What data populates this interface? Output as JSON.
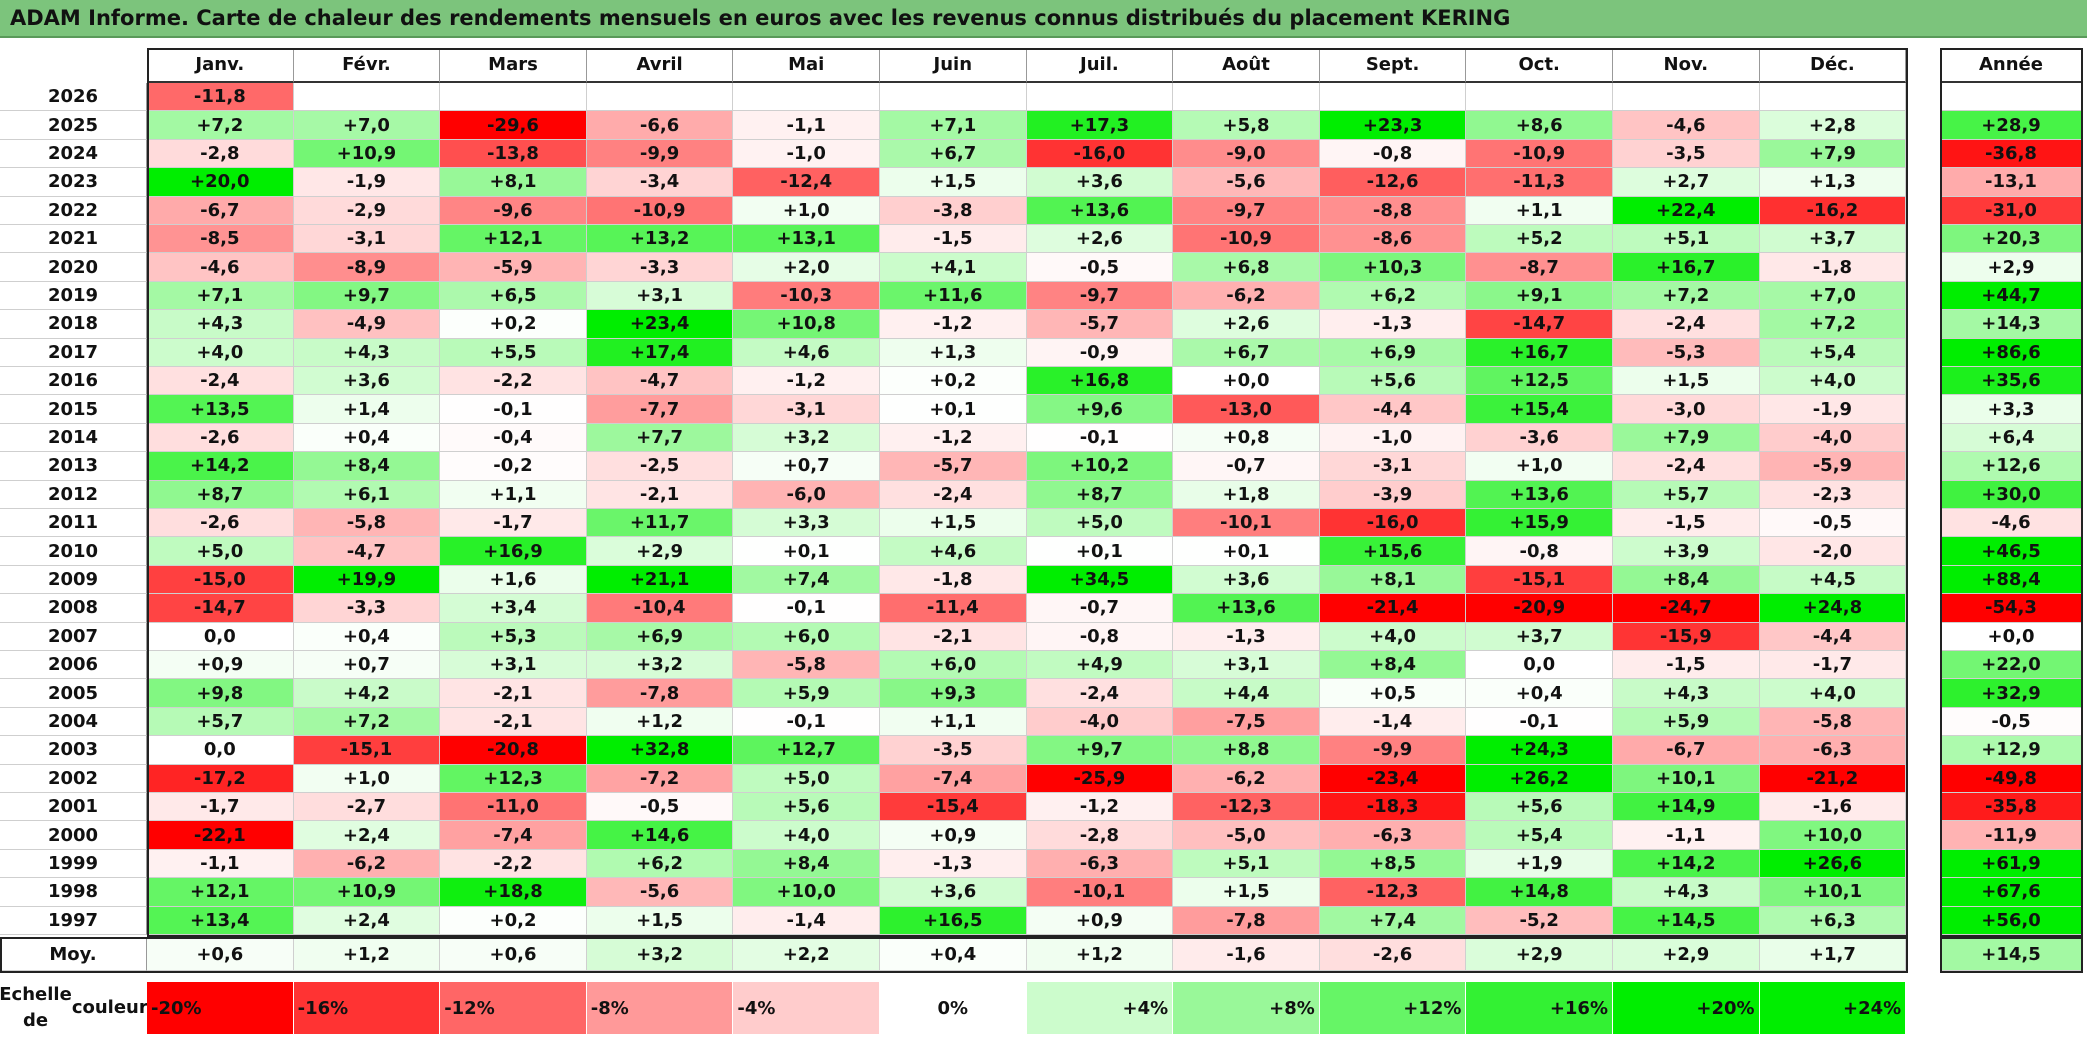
{
  "title": "ADAM Informe. Carte de chaleur des rendements mensuels en euros avec les revenus connus distribués du placement KERING",
  "chart_data": {
    "type": "heatmap",
    "columns": [
      "Janv.",
      "Févr.",
      "Mars",
      "Avril",
      "Mai",
      "Juin",
      "Juil.",
      "Août",
      "Sept.",
      "Oct.",
      "Nov.",
      "Déc."
    ],
    "year_column_label": "Année",
    "rows": [
      {
        "year": "2026",
        "values": [
          "-11,8",
          "",
          "",
          "",
          "",
          "",
          "",
          "",
          "",
          "",
          "",
          ""
        ],
        "annual": ""
      },
      {
        "year": "2025",
        "values": [
          "+7,2",
          "+7,0",
          "-29,6",
          "-6,6",
          "-1,1",
          "+7,1",
          "+17,3",
          "+5,8",
          "+23,3",
          "+8,6",
          "-4,6",
          "+2,8"
        ],
        "annual": "+28,9"
      },
      {
        "year": "2024",
        "values": [
          "-2,8",
          "+10,9",
          "-13,8",
          "-9,9",
          "-1,0",
          "+6,7",
          "-16,0",
          "-9,0",
          "-0,8",
          "-10,9",
          "-3,5",
          "+7,9"
        ],
        "annual": "-36,8"
      },
      {
        "year": "2023",
        "values": [
          "+20,0",
          "-1,9",
          "+8,1",
          "-3,4",
          "-12,4",
          "+1,5",
          "+3,6",
          "-5,6",
          "-12,6",
          "-11,3",
          "+2,7",
          "+1,3"
        ],
        "annual": "-13,1"
      },
      {
        "year": "2022",
        "values": [
          "-6,7",
          "-2,9",
          "-9,6",
          "-10,9",
          "+1,0",
          "-3,8",
          "+13,6",
          "-9,7",
          "-8,8",
          "+1,1",
          "+22,4",
          "-16,2"
        ],
        "annual": "-31,0"
      },
      {
        "year": "2021",
        "values": [
          "-8,5",
          "-3,1",
          "+12,1",
          "+13,2",
          "+13,1",
          "-1,5",
          "+2,6",
          "-10,9",
          "-8,6",
          "+5,2",
          "+5,1",
          "+3,7"
        ],
        "annual": "+20,3"
      },
      {
        "year": "2020",
        "values": [
          "-4,6",
          "-8,9",
          "-5,9",
          "-3,3",
          "+2,0",
          "+4,1",
          "-0,5",
          "+6,8",
          "+10,3",
          "-8,7",
          "+16,7",
          "-1,8"
        ],
        "annual": "+2,9"
      },
      {
        "year": "2019",
        "values": [
          "+7,1",
          "+9,7",
          "+6,5",
          "+3,1",
          "-10,3",
          "+11,6",
          "-9,7",
          "-6,2",
          "+6,2",
          "+9,1",
          "+7,2",
          "+7,0"
        ],
        "annual": "+44,7"
      },
      {
        "year": "2018",
        "values": [
          "+4,3",
          "-4,9",
          "+0,2",
          "+23,4",
          "+10,8",
          "-1,2",
          "-5,7",
          "+2,6",
          "-1,3",
          "-14,7",
          "-2,4",
          "+7,2"
        ],
        "annual": "+14,3"
      },
      {
        "year": "2017",
        "values": [
          "+4,0",
          "+4,3",
          "+5,5",
          "+17,4",
          "+4,6",
          "+1,3",
          "-0,9",
          "+6,7",
          "+6,9",
          "+16,7",
          "-5,3",
          "+5,4"
        ],
        "annual": "+86,6"
      },
      {
        "year": "2016",
        "values": [
          "-2,4",
          "+3,6",
          "-2,2",
          "-4,7",
          "-1,2",
          "+0,2",
          "+16,8",
          "+0,0",
          "+5,6",
          "+12,5",
          "+1,5",
          "+4,0"
        ],
        "annual": "+35,6"
      },
      {
        "year": "2015",
        "values": [
          "+13,5",
          "+1,4",
          "-0,1",
          "-7,7",
          "-3,1",
          "+0,1",
          "+9,6",
          "-13,0",
          "-4,4",
          "+15,4",
          "-3,0",
          "-1,9"
        ],
        "annual": "+3,3"
      },
      {
        "year": "2014",
        "values": [
          "-2,6",
          "+0,4",
          "-0,4",
          "+7,7",
          "+3,2",
          "-1,2",
          "-0,1",
          "+0,8",
          "-1,0",
          "-3,6",
          "+7,9",
          "-4,0"
        ],
        "annual": "+6,4"
      },
      {
        "year": "2013",
        "values": [
          "+14,2",
          "+8,4",
          "-0,2",
          "-2,5",
          "+0,7",
          "-5,7",
          "+10,2",
          "-0,7",
          "-3,1",
          "+1,0",
          "-2,4",
          "-5,9"
        ],
        "annual": "+12,6"
      },
      {
        "year": "2012",
        "values": [
          "+8,7",
          "+6,1",
          "+1,1",
          "-2,1",
          "-6,0",
          "-2,4",
          "+8,7",
          "+1,8",
          "-3,9",
          "+13,6",
          "+5,7",
          "-2,3"
        ],
        "annual": "+30,0"
      },
      {
        "year": "2011",
        "values": [
          "-2,6",
          "-5,8",
          "-1,7",
          "+11,7",
          "+3,3",
          "+1,5",
          "+5,0",
          "-10,1",
          "-16,0",
          "+15,9",
          "-1,5",
          "-0,5"
        ],
        "annual": "-4,6"
      },
      {
        "year": "2010",
        "values": [
          "+5,0",
          "-4,7",
          "+16,9",
          "+2,9",
          "+0,1",
          "+4,6",
          "+0,1",
          "+0,1",
          "+15,6",
          "-0,8",
          "+3,9",
          "-2,0"
        ],
        "annual": "+46,5"
      },
      {
        "year": "2009",
        "values": [
          "-15,0",
          "+19,9",
          "+1,6",
          "+21,1",
          "+7,4",
          "-1,8",
          "+34,5",
          "+3,6",
          "+8,1",
          "-15,1",
          "+8,4",
          "+4,5"
        ],
        "annual": "+88,4"
      },
      {
        "year": "2008",
        "values": [
          "-14,7",
          "-3,3",
          "+3,4",
          "-10,4",
          "-0,1",
          "-11,4",
          "-0,7",
          "+13,6",
          "-21,4",
          "-20,9",
          "-24,7",
          "+24,8"
        ],
        "annual": "-54,3"
      },
      {
        "year": "2007",
        "values": [
          "0,0",
          "+0,4",
          "+5,3",
          "+6,9",
          "+6,0",
          "-2,1",
          "-0,8",
          "-1,3",
          "+4,0",
          "+3,7",
          "-15,9",
          "-4,4"
        ],
        "annual": "+0,0"
      },
      {
        "year": "2006",
        "values": [
          "+0,9",
          "+0,7",
          "+3,1",
          "+3,2",
          "-5,8",
          "+6,0",
          "+4,9",
          "+3,1",
          "+8,4",
          "0,0",
          "-1,5",
          "-1,7"
        ],
        "annual": "+22,0"
      },
      {
        "year": "2005",
        "values": [
          "+9,8",
          "+4,2",
          "-2,1",
          "-7,8",
          "+5,9",
          "+9,3",
          "-2,4",
          "+4,4",
          "+0,5",
          "+0,4",
          "+4,3",
          "+4,0"
        ],
        "annual": "+32,9"
      },
      {
        "year": "2004",
        "values": [
          "+5,7",
          "+7,2",
          "-2,1",
          "+1,2",
          "-0,1",
          "+1,1",
          "-4,0",
          "-7,5",
          "-1,4",
          "-0,1",
          "+5,9",
          "-5,8"
        ],
        "annual": "-0,5"
      },
      {
        "year": "2003",
        "values": [
          "0,0",
          "-15,1",
          "-20,8",
          "+32,8",
          "+12,7",
          "-3,5",
          "+9,7",
          "+8,8",
          "-9,9",
          "+24,3",
          "-6,7",
          "-6,3"
        ],
        "annual": "+12,9"
      },
      {
        "year": "2002",
        "values": [
          "-17,2",
          "+1,0",
          "+12,3",
          "-7,2",
          "+5,0",
          "-7,4",
          "-25,9",
          "-6,2",
          "-23,4",
          "+26,2",
          "+10,1",
          "-21,2"
        ],
        "annual": "-49,8"
      },
      {
        "year": "2001",
        "values": [
          "-1,7",
          "-2,7",
          "-11,0",
          "-0,5",
          "+5,6",
          "-15,4",
          "-1,2",
          "-12,3",
          "-18,3",
          "+5,6",
          "+14,9",
          "-1,6"
        ],
        "annual": "-35,8"
      },
      {
        "year": "2000",
        "values": [
          "-22,1",
          "+2,4",
          "-7,4",
          "+14,6",
          "+4,0",
          "+0,9",
          "-2,8",
          "-5,0",
          "-6,3",
          "+5,4",
          "-1,1",
          "+10,0"
        ],
        "annual": "-11,9"
      },
      {
        "year": "1999",
        "values": [
          "-1,1",
          "-6,2",
          "-2,2",
          "+6,2",
          "+8,4",
          "-1,3",
          "-6,3",
          "+5,1",
          "+8,5",
          "+1,9",
          "+14,2",
          "+26,6"
        ],
        "annual": "+61,9"
      },
      {
        "year": "1998",
        "values": [
          "+12,1",
          "+10,9",
          "+18,8",
          "-5,6",
          "+10,0",
          "+3,6",
          "-10,1",
          "+1,5",
          "-12,3",
          "+14,8",
          "+4,3",
          "+10,1"
        ],
        "annual": "+67,6"
      },
      {
        "year": "1997",
        "values": [
          "+13,4",
          "+2,4",
          "+0,2",
          "+1,5",
          "-1,4",
          "+16,5",
          "+0,9",
          "-7,8",
          "+7,4",
          "-5,2",
          "+14,5",
          "+6,3"
        ],
        "annual": "+56,0"
      }
    ],
    "average": {
      "label": "Moy.",
      "values": [
        "+0,6",
        "+1,2",
        "+0,6",
        "+3,2",
        "+2,2",
        "+0,4",
        "+1,2",
        "-1,6",
        "-2,6",
        "+2,9",
        "+2,9",
        "+1,7"
      ],
      "annual": "+14,5"
    },
    "color_scale": {
      "label_line1": "Echelle de",
      "label_line2": "couleur",
      "stops": [
        "-20%",
        "-16%",
        "-12%",
        "-8%",
        "-4%",
        "0%",
        "+4%",
        "+8%",
        "+12%",
        "+16%",
        "+20%",
        "+24%"
      ],
      "stop_values": [
        -20,
        -16,
        -12,
        -8,
        -4,
        0,
        4,
        8,
        12,
        16,
        20,
        24
      ],
      "negative_color": "#ff0000",
      "neutral_color": "#ffffff",
      "positive_color": "#00ee00"
    }
  }
}
